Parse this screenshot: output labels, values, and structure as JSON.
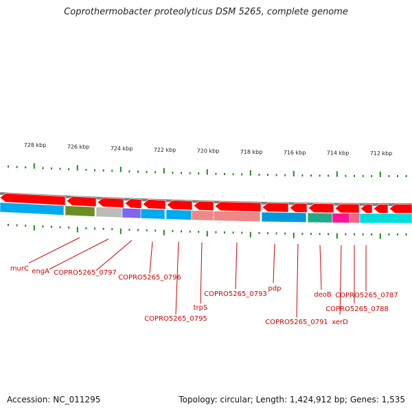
{
  "title": "Coprothermobacter proteolyticus DSM 5265, complete genome",
  "footer": {
    "accession": "Accession: NC_011295",
    "topology": "Topology: circular; Length: 1,424,912 bp; Genes: 1,535"
  },
  "ruler": {
    "labels": [
      "728 kbp",
      "726 kbp",
      "724 kbp",
      "722 kbp",
      "720 kbp",
      "718 kbp",
      "716 kbp",
      "714 kbp",
      "712 kbp"
    ]
  },
  "colors": {
    "forward_strand": "#ff0000",
    "backbone": "#808080",
    "tick": "#228822",
    "label": "#cc0000"
  },
  "genes": [
    {
      "label": "murC"
    },
    {
      "label": "engA"
    },
    {
      "label": "COPRO5265_0797"
    },
    {
      "label": "COPRO5265_0796"
    },
    {
      "label": "COPRO5265_0795"
    },
    {
      "label": "trpS"
    },
    {
      "label": "COPRO5265_0793"
    },
    {
      "label": "pdp"
    },
    {
      "label": "COPRO5265_0791"
    },
    {
      "label": "deoB"
    },
    {
      "label": "xerD"
    },
    {
      "label": "COPRO5265_0788"
    },
    {
      "label": "COPRO5265_0787"
    }
  ]
}
